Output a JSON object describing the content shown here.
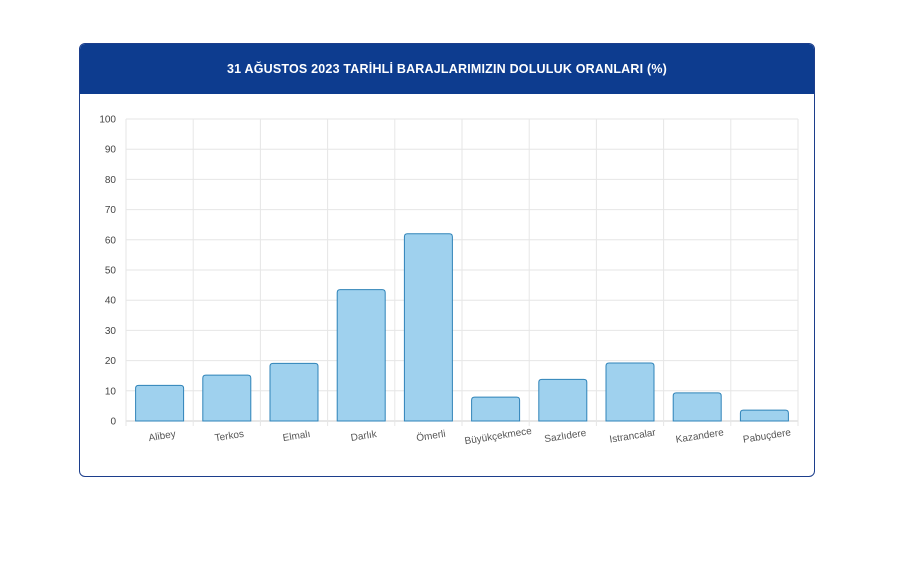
{
  "chart_data": {
    "type": "bar",
    "title": "31 AĞUSTOS 2023 TARİHLİ BARAJLARIMIZIN DOLULUK ORANLARI (%)",
    "categories": [
      "Alibey",
      "Terkos",
      "Elmalı",
      "Darlık",
      "Ömerli",
      "Büyükçekmece",
      "Sazlıdere",
      "Istrancalar",
      "Kazandere",
      "Pabuçdere"
    ],
    "values": [
      11.8,
      15.2,
      19.1,
      43.5,
      62.0,
      7.9,
      13.8,
      19.2,
      9.3,
      3.6
    ],
    "ylim": [
      0,
      100
    ],
    "yticks": [
      0,
      10,
      20,
      30,
      40,
      50,
      60,
      70,
      80,
      90,
      100
    ],
    "grid": true,
    "bar_fill": "#9fd1ee",
    "bar_stroke": "#2f83b8"
  }
}
